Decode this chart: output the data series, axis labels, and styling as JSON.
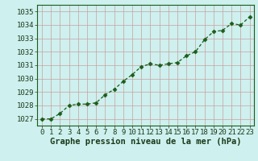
{
  "x": [
    0,
    1,
    2,
    3,
    4,
    5,
    6,
    7,
    8,
    9,
    10,
    11,
    12,
    13,
    14,
    15,
    16,
    17,
    18,
    19,
    20,
    21,
    22,
    23
  ],
  "y": [
    1027.0,
    1027.0,
    1027.4,
    1028.0,
    1028.1,
    1028.1,
    1028.2,
    1028.8,
    1029.2,
    1029.8,
    1030.3,
    1030.9,
    1031.1,
    1031.0,
    1031.1,
    1031.2,
    1031.7,
    1032.0,
    1032.9,
    1033.5,
    1033.6,
    1034.1,
    1034.0,
    1034.6
  ],
  "line_color": "#1a5c1a",
  "marker": "D",
  "marker_size": 2.5,
  "bg_color": "#cef0ee",
  "grid_color_h": "#c8a0a0",
  "grid_color_v": "#c8a0a0",
  "xlabel": "Graphe pression niveau de la mer (hPa)",
  "xlabel_fontsize": 7.5,
  "tick_fontsize": 6.5,
  "ylim": [
    1026.5,
    1035.5
  ],
  "yticks": [
    1027,
    1028,
    1029,
    1030,
    1031,
    1032,
    1033,
    1034,
    1035
  ],
  "xticks": [
    0,
    1,
    2,
    3,
    4,
    5,
    6,
    7,
    8,
    9,
    10,
    11,
    12,
    13,
    14,
    15,
    16,
    17,
    18,
    19,
    20,
    21,
    22,
    23
  ],
  "xlabel_color": "#1a3a1a",
  "tick_color": "#1a3a1a",
  "spine_color": "#1a5c1a"
}
